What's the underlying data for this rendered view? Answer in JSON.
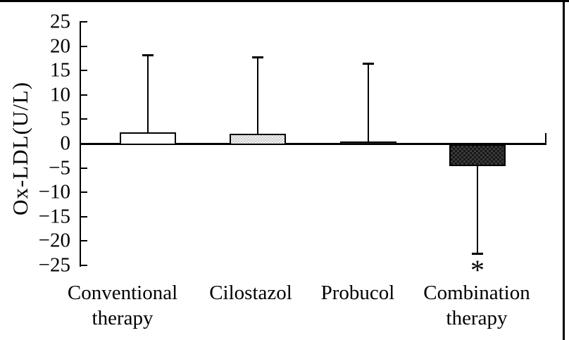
{
  "figure": {
    "background": "#ffffff",
    "border_color": "#000000",
    "ink_color": "#000000",
    "fill_colors": {
      "white": "#ffffff",
      "light_stipple": "#e9e9e9",
      "dark": "#1d1d1d",
      "dark_crosshatch": "#222222"
    }
  },
  "chart_data": {
    "type": "bar",
    "title": "",
    "xlabel": "",
    "ylabel": "Ox-LDL(U/L)",
    "ylim": [
      -25,
      25
    ],
    "ytick_step": 5,
    "ytick_values": [
      25,
      20,
      15,
      10,
      5,
      0,
      -5,
      -10,
      -15,
      -20,
      -25
    ],
    "ytick_labels": [
      "25",
      "20",
      "15",
      "10",
      "5",
      "0",
      "−5",
      "−10",
      "−15",
      "−20",
      "−25"
    ],
    "grid": false,
    "legend": null,
    "categories": [
      "Conventional therapy",
      "Cilostazol",
      "Probucol",
      "Combination therapy"
    ],
    "category_lines": [
      [
        "Conventional",
        "therapy"
      ],
      [
        "Cilostazol"
      ],
      [
        "Probucol"
      ],
      [
        "Combination",
        "therapy"
      ]
    ],
    "values": [
      2.3,
      2.0,
      0.4,
      -4.5
    ],
    "error_bar_ends": [
      18.0,
      17.6,
      16.3,
      -22.4
    ],
    "bar_fills": [
      "white",
      "light-stipple",
      "dark",
      "dark-crosshatch"
    ],
    "annotations": [
      {
        "text": "*",
        "category": "Combination therapy",
        "position": "below-error-bar"
      }
    ]
  }
}
